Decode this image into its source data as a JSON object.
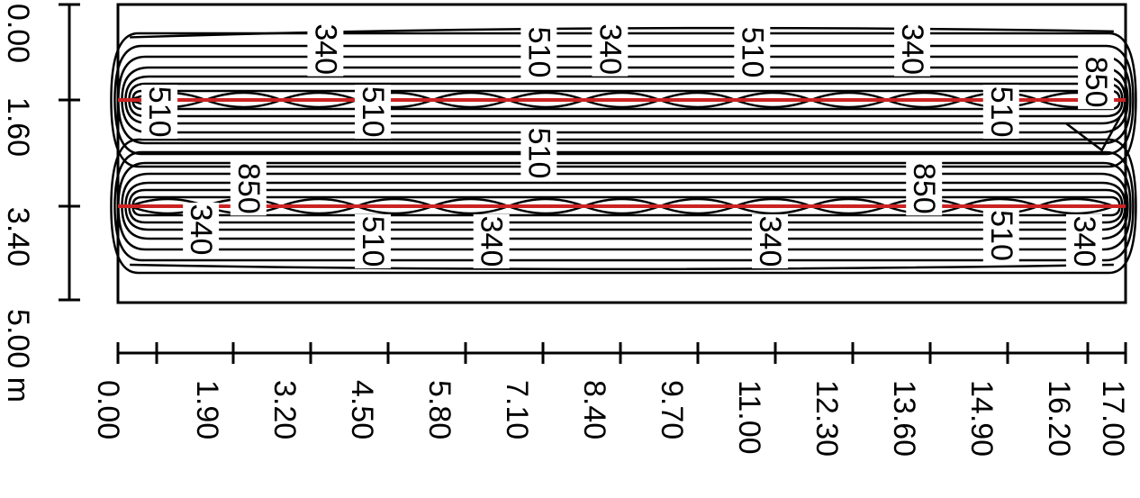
{
  "diagram": {
    "type": "isolux-contour-plan",
    "x_axis": {
      "ticks": [
        "0.00",
        "1.90",
        "3.20",
        "4.50",
        "5.80",
        "7.10",
        "8.40",
        "9.70",
        "11.00",
        "12.30",
        "13.60",
        "14.90",
        "16.20",
        "17.00"
      ]
    },
    "y_axis": {
      "ticks": [
        "0.00",
        "1.60",
        "3.40",
        "5.00"
      ],
      "unit": "m"
    },
    "contour_labels": [
      {
        "text": "340",
        "x": 3.5,
        "y": 0.75
      },
      {
        "text": "510",
        "x": 7.1,
        "y": 0.8
      },
      {
        "text": "340",
        "x": 8.3,
        "y": 0.75
      },
      {
        "text": "510",
        "x": 10.7,
        "y": 0.8
      },
      {
        "text": "340",
        "x": 13.4,
        "y": 0.75
      },
      {
        "text": "850",
        "x": 16.5,
        "y": 1.3
      },
      {
        "text": "510",
        "x": 0.7,
        "y": 1.8
      },
      {
        "text": "510",
        "x": 4.3,
        "y": 1.8
      },
      {
        "text": "510",
        "x": 14.9,
        "y": 1.8
      },
      {
        "text": "510",
        "x": 7.1,
        "y": 2.5
      },
      {
        "text": "850",
        "x": 2.2,
        "y": 3.1
      },
      {
        "text": "850",
        "x": 13.6,
        "y": 3.1
      },
      {
        "text": "340",
        "x": 1.4,
        "y": 3.8
      },
      {
        "text": "510",
        "x": 4.3,
        "y": 4.0
      },
      {
        "text": "340",
        "x": 6.3,
        "y": 4.0
      },
      {
        "text": "340",
        "x": 11.0,
        "y": 4.0
      },
      {
        "text": "510",
        "x": 14.9,
        "y": 3.9
      },
      {
        "text": "340",
        "x": 16.3,
        "y": 4.0
      }
    ],
    "luminaire_rows": [
      1.6,
      3.4
    ],
    "colors": {
      "luminaire_line": "#cc2222",
      "contour": "#000000",
      "background": "#ffffff"
    }
  }
}
